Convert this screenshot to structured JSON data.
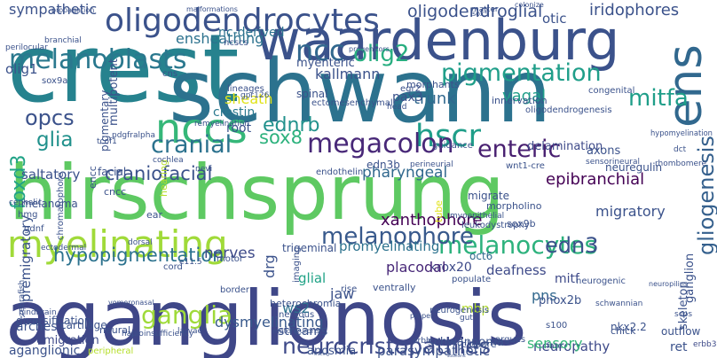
{
  "words": [
    {
      "text": "aganglionosis",
      "color": "#3f4788"
    },
    {
      "text": "hirschsprung",
      "color": "#5ec962"
    },
    {
      "text": "crest",
      "color": "#26828e"
    },
    {
      "text": "schwann",
      "color": "#2c728e"
    },
    {
      "text": "waardenburg",
      "color": "#3b528b"
    },
    {
      "text": "neurocristopathies",
      "color": "#3e4a89"
    },
    {
      "text": "oligodendrocytes",
      "color": "#3b528b"
    },
    {
      "text": "myelinating",
      "color": "#a0da39"
    },
    {
      "text": "nccs",
      "color": "#35b779"
    },
    {
      "text": "ens",
      "color": "#31688e"
    },
    {
      "text": "hscr",
      "color": "#1f9e89"
    },
    {
      "text": "melanoblasts",
      "color": "#2a788e"
    },
    {
      "text": "ncc",
      "color": "#31688e"
    },
    {
      "text": "olig2",
      "color": "#28ae80"
    },
    {
      "text": "pigmentation",
      "color": "#1f9e89"
    },
    {
      "text": "megacolon",
      "color": "#482878"
    },
    {
      "text": "enteric",
      "color": "#481f70"
    },
    {
      "text": "melanocytes",
      "color": "#2db27d"
    },
    {
      "text": "opcs",
      "color": "#3b528b"
    },
    {
      "text": "cranial",
      "color": "#2c728e"
    },
    {
      "text": "glia",
      "color": "#21918c"
    },
    {
      "text": "ganglia",
      "color": "#9fda3a"
    },
    {
      "text": "melanophore",
      "color": "#38598c"
    },
    {
      "text": "edn3",
      "color": "#3b528b"
    },
    {
      "text": "mitfa",
      "color": "#1f9e89"
    },
    {
      "text": "gliogenesis",
      "color": "#35608d"
    },
    {
      "text": "foxd3",
      "color": "#20a386"
    },
    {
      "text": "craniofacial",
      "color": "#3b528b"
    },
    {
      "text": "sox8",
      "color": "#2db27d"
    },
    {
      "text": "ednrb",
      "color": "#21918c"
    },
    {
      "text": "hypopigmentation",
      "color": "#2c728e"
    },
    {
      "text": "nerves",
      "color": "#3e4a89"
    },
    {
      "text": "xanthophore",
      "color": "#440154"
    },
    {
      "text": "pharyngeal",
      "color": "#31688e"
    },
    {
      "text": "vagal",
      "color": "#1f9e89"
    },
    {
      "text": "trunk",
      "color": "#31688e"
    },
    {
      "text": "kallmann",
      "color": "#3b528b"
    },
    {
      "text": "ensheathing",
      "color": "#2c728e"
    },
    {
      "text": "sympathetic",
      "color": "#3b528b"
    },
    {
      "text": "oligodendroglial",
      "color": "#3b528b"
    },
    {
      "text": "iridophores",
      "color": "#3b528b"
    },
    {
      "text": "otic",
      "color": "#3b528b"
    },
    {
      "text": "saltatory",
      "color": "#3b528b"
    },
    {
      "text": "epibranchial",
      "color": "#440154"
    },
    {
      "text": "delamination",
      "color": "#3e4a89"
    },
    {
      "text": "sheath",
      "color": "#e0e318"
    },
    {
      "text": "root",
      "color": "#3b528b"
    },
    {
      "text": "crestin",
      "color": "#2a788e"
    },
    {
      "text": "dysmyelinating",
      "color": "#38598c"
    },
    {
      "text": "parasympathetic",
      "color": "#3b528b"
    },
    {
      "text": "neuropathy",
      "color": "#3e4a89"
    },
    {
      "text": "sensory",
      "color": "#35b779"
    },
    {
      "text": "ret",
      "color": "#3b528b"
    },
    {
      "text": "erbb3",
      "color": "#3e4a89"
    },
    {
      "text": "aganglionic",
      "color": "#3b528b"
    },
    {
      "text": "emigration",
      "color": "#3e4a89"
    },
    {
      "text": "arches",
      "color": "#3b528b"
    },
    {
      "text": "streams",
      "color": "#3b528b"
    },
    {
      "text": "krox20",
      "color": "#3e4a89"
    },
    {
      "text": "deafness",
      "color": "#3e4a89"
    },
    {
      "text": "mitf",
      "color": "#3e4a89"
    },
    {
      "text": "pns",
      "color": "#31688e"
    },
    {
      "text": "migratory",
      "color": "#3b528b"
    },
    {
      "text": "placodal",
      "color": "#482878"
    },
    {
      "text": "glial",
      "color": "#20a386"
    },
    {
      "text": "jaw",
      "color": "#3b528b"
    },
    {
      "text": "ws2",
      "color": "#2c728e"
    },
    {
      "text": "drg",
      "color": "#3b528b"
    },
    {
      "text": "promyelinating",
      "color": "#2c728e"
    },
    {
      "text": "premigratory",
      "color": "#3b528b"
    },
    {
      "text": "multipotent",
      "color": "#3b528b"
    },
    {
      "text": "olig1",
      "color": "#3b528b"
    },
    {
      "text": "nc-derived",
      "color": "#2c728e"
    },
    {
      "text": "myenteric",
      "color": "#3b528b"
    },
    {
      "text": "spinal",
      "color": "#3b528b"
    },
    {
      "text": "edn3b",
      "color": "#3b528b"
    },
    {
      "text": "pax3",
      "color": "#3b528b"
    },
    {
      "text": "egr2",
      "color": "#3b528b"
    },
    {
      "text": "axons",
      "color": "#3b528b"
    },
    {
      "text": "neuregulin",
      "color": "#3b528b"
    },
    {
      "text": "oct6",
      "color": "#31688e"
    },
    {
      "text": "sox9b",
      "color": "#3b528b"
    },
    {
      "text": "phox2b",
      "color": "#3b528b"
    },
    {
      "text": "mbp",
      "color": "#b5de2b"
    },
    {
      "text": "skeleton",
      "color": "#3b528b"
    },
    {
      "text": "ganglion",
      "color": "#3b528b"
    },
    {
      "text": "chick",
      "color": "#3b528b"
    },
    {
      "text": "outflow",
      "color": "#3b528b"
    },
    {
      "text": "autonomic",
      "color": "#3b528b"
    },
    {
      "text": "schwannoma",
      "color": "#3b528b"
    },
    {
      "text": "anosmia",
      "color": "#3b528b"
    },
    {
      "text": "melanoma",
      "color": "#3b528b"
    },
    {
      "text": "facial",
      "color": "#3b528b"
    },
    {
      "text": "pigmentary",
      "color": "#3b528b"
    },
    {
      "text": "encc",
      "color": "#3b528b"
    },
    {
      "text": "cncc",
      "color": "#3b528b"
    },
    {
      "text": "sox9a",
      "color": "#3b528b"
    },
    {
      "text": "cns",
      "color": "#3b528b"
    },
    {
      "text": "ncscs",
      "color": "#3b528b"
    },
    {
      "text": "gpr126",
      "color": "#3b528b"
    },
    {
      "text": "lineages",
      "color": "#3b528b"
    },
    {
      "text": "morphants",
      "color": "#3b528b"
    },
    {
      "text": "innervation",
      "color": "#3b528b"
    },
    {
      "text": "oligodendrogenesis",
      "color": "#3b528b"
    },
    {
      "text": "congenital",
      "color": "#3b528b"
    },
    {
      "text": "hmg",
      "color": "#3b528b"
    },
    {
      "text": "gdnf",
      "color": "#3b528b"
    },
    {
      "text": "chromatophore",
      "color": "#3b528b"
    },
    {
      "text": "endothelin",
      "color": "#3b528b"
    },
    {
      "text": "motor",
      "color": "#3b528b"
    },
    {
      "text": "border",
      "color": "#3b528b"
    },
    {
      "text": "imaging",
      "color": "#3b528b"
    },
    {
      "text": "trigeminal",
      "color": "#3b528b"
    },
    {
      "text": "tube",
      "color": "#e0e318"
    },
    {
      "text": "leukodystrophy",
      "color": "#3b528b"
    },
    {
      "text": "morpholino",
      "color": "#3b528b"
    },
    {
      "text": "migrate",
      "color": "#3b528b"
    },
    {
      "text": "ear",
      "color": "#3b528b"
    },
    {
      "text": "hearing",
      "color": "#b5de2b"
    },
    {
      "text": "cord",
      "color": "#3b528b"
    },
    {
      "text": "e11.5",
      "color": "#3b528b"
    },
    {
      "text": "diversification",
      "color": "#3b528b"
    },
    {
      "text": "peripheral",
      "color": "#b5de2b"
    },
    {
      "text": "cartilage",
      "color": "#3b528b"
    },
    {
      "text": "neural",
      "color": "#3b528b"
    },
    {
      "text": "hindbrain",
      "color": "#3b528b"
    },
    {
      "text": "vomeronasal",
      "color": "#3b528b"
    },
    {
      "text": "heterochromia",
      "color": "#3b528b"
    },
    {
      "text": "rise",
      "color": "#3b528b"
    },
    {
      "text": "ventrally",
      "color": "#3b528b"
    },
    {
      "text": "neurogenesis",
      "color": "#3b528b"
    },
    {
      "text": "neurogenic",
      "color": "#3b528b"
    },
    {
      "text": "neuropilins",
      "color": "#3b528b"
    },
    {
      "text": "populate",
      "color": "#3b528b"
    },
    {
      "text": "nervous",
      "color": "#3b528b"
    },
    {
      "text": "gut",
      "color": "#3b528b"
    },
    {
      "text": "closure",
      "color": "#3b528b"
    },
    {
      "text": "argues",
      "color": "#3b528b"
    },
    {
      "text": "fate",
      "color": "#3b528b"
    },
    {
      "text": "s100",
      "color": "#3b528b"
    },
    {
      "text": "nkx2.2",
      "color": "#3b528b"
    },
    {
      "text": "proper",
      "color": "#3b528b"
    },
    {
      "text": "erbb",
      "color": "#3b528b"
    },
    {
      "text": "tracing",
      "color": "#3b528b"
    },
    {
      "text": "motoneurons",
      "color": "#3b528b"
    },
    {
      "text": "zebrafish",
      "color": "#3b528b"
    },
    {
      "text": "haploinsufficiency",
      "color": "#3b528b"
    },
    {
      "text": "larvae",
      "color": "#3b528b"
    },
    {
      "text": "propagation",
      "color": "#3b528b"
    },
    {
      "text": "perilocular",
      "color": "#3b528b"
    },
    {
      "text": "branchial",
      "color": "#3b528b"
    },
    {
      "text": "malformations",
      "color": "#3b528b"
    },
    {
      "text": "progenitors",
      "color": "#3b528b"
    },
    {
      "text": "colonize",
      "color": "#3b528b"
    },
    {
      "text": "sox5",
      "color": "#3b528b"
    },
    {
      "text": "matter",
      "color": "#3b528b"
    },
    {
      "text": "remyelination",
      "color": "#3b528b"
    },
    {
      "text": "cochlea",
      "color": "#3b528b"
    },
    {
      "text": "nevi",
      "color": "#3b528b"
    },
    {
      "text": "pdgfralpha",
      "color": "#3b528b"
    },
    {
      "text": "tcof1",
      "color": "#3b528b"
    },
    {
      "text": "cephalic",
      "color": "#3b528b"
    },
    {
      "text": "ectomesenchymal",
      "color": "#3b528b"
    },
    {
      "text": "perineurial",
      "color": "#3b528b"
    },
    {
      "text": "guidance",
      "color": "#3b528b"
    },
    {
      "text": "wnt1-cre",
      "color": "#3b528b"
    },
    {
      "text": "sensorineural",
      "color": "#3b528b"
    },
    {
      "text": "rhombomere",
      "color": "#3b528b"
    },
    {
      "text": "dct",
      "color": "#3b528b"
    },
    {
      "text": "head",
      "color": "#3b528b"
    },
    {
      "text": "hypomyelination",
      "color": "#3b528b"
    },
    {
      "text": "myoepithelial",
      "color": "#3b528b"
    },
    {
      "text": "schwannian",
      "color": "#3b528b"
    },
    {
      "text": "ectodermal",
      "color": "#3b528b"
    },
    {
      "text": "dorsal",
      "color": "#3b528b"
    },
    {
      "text": "scps",
      "color": "#3b528b"
    }
  ]
}
